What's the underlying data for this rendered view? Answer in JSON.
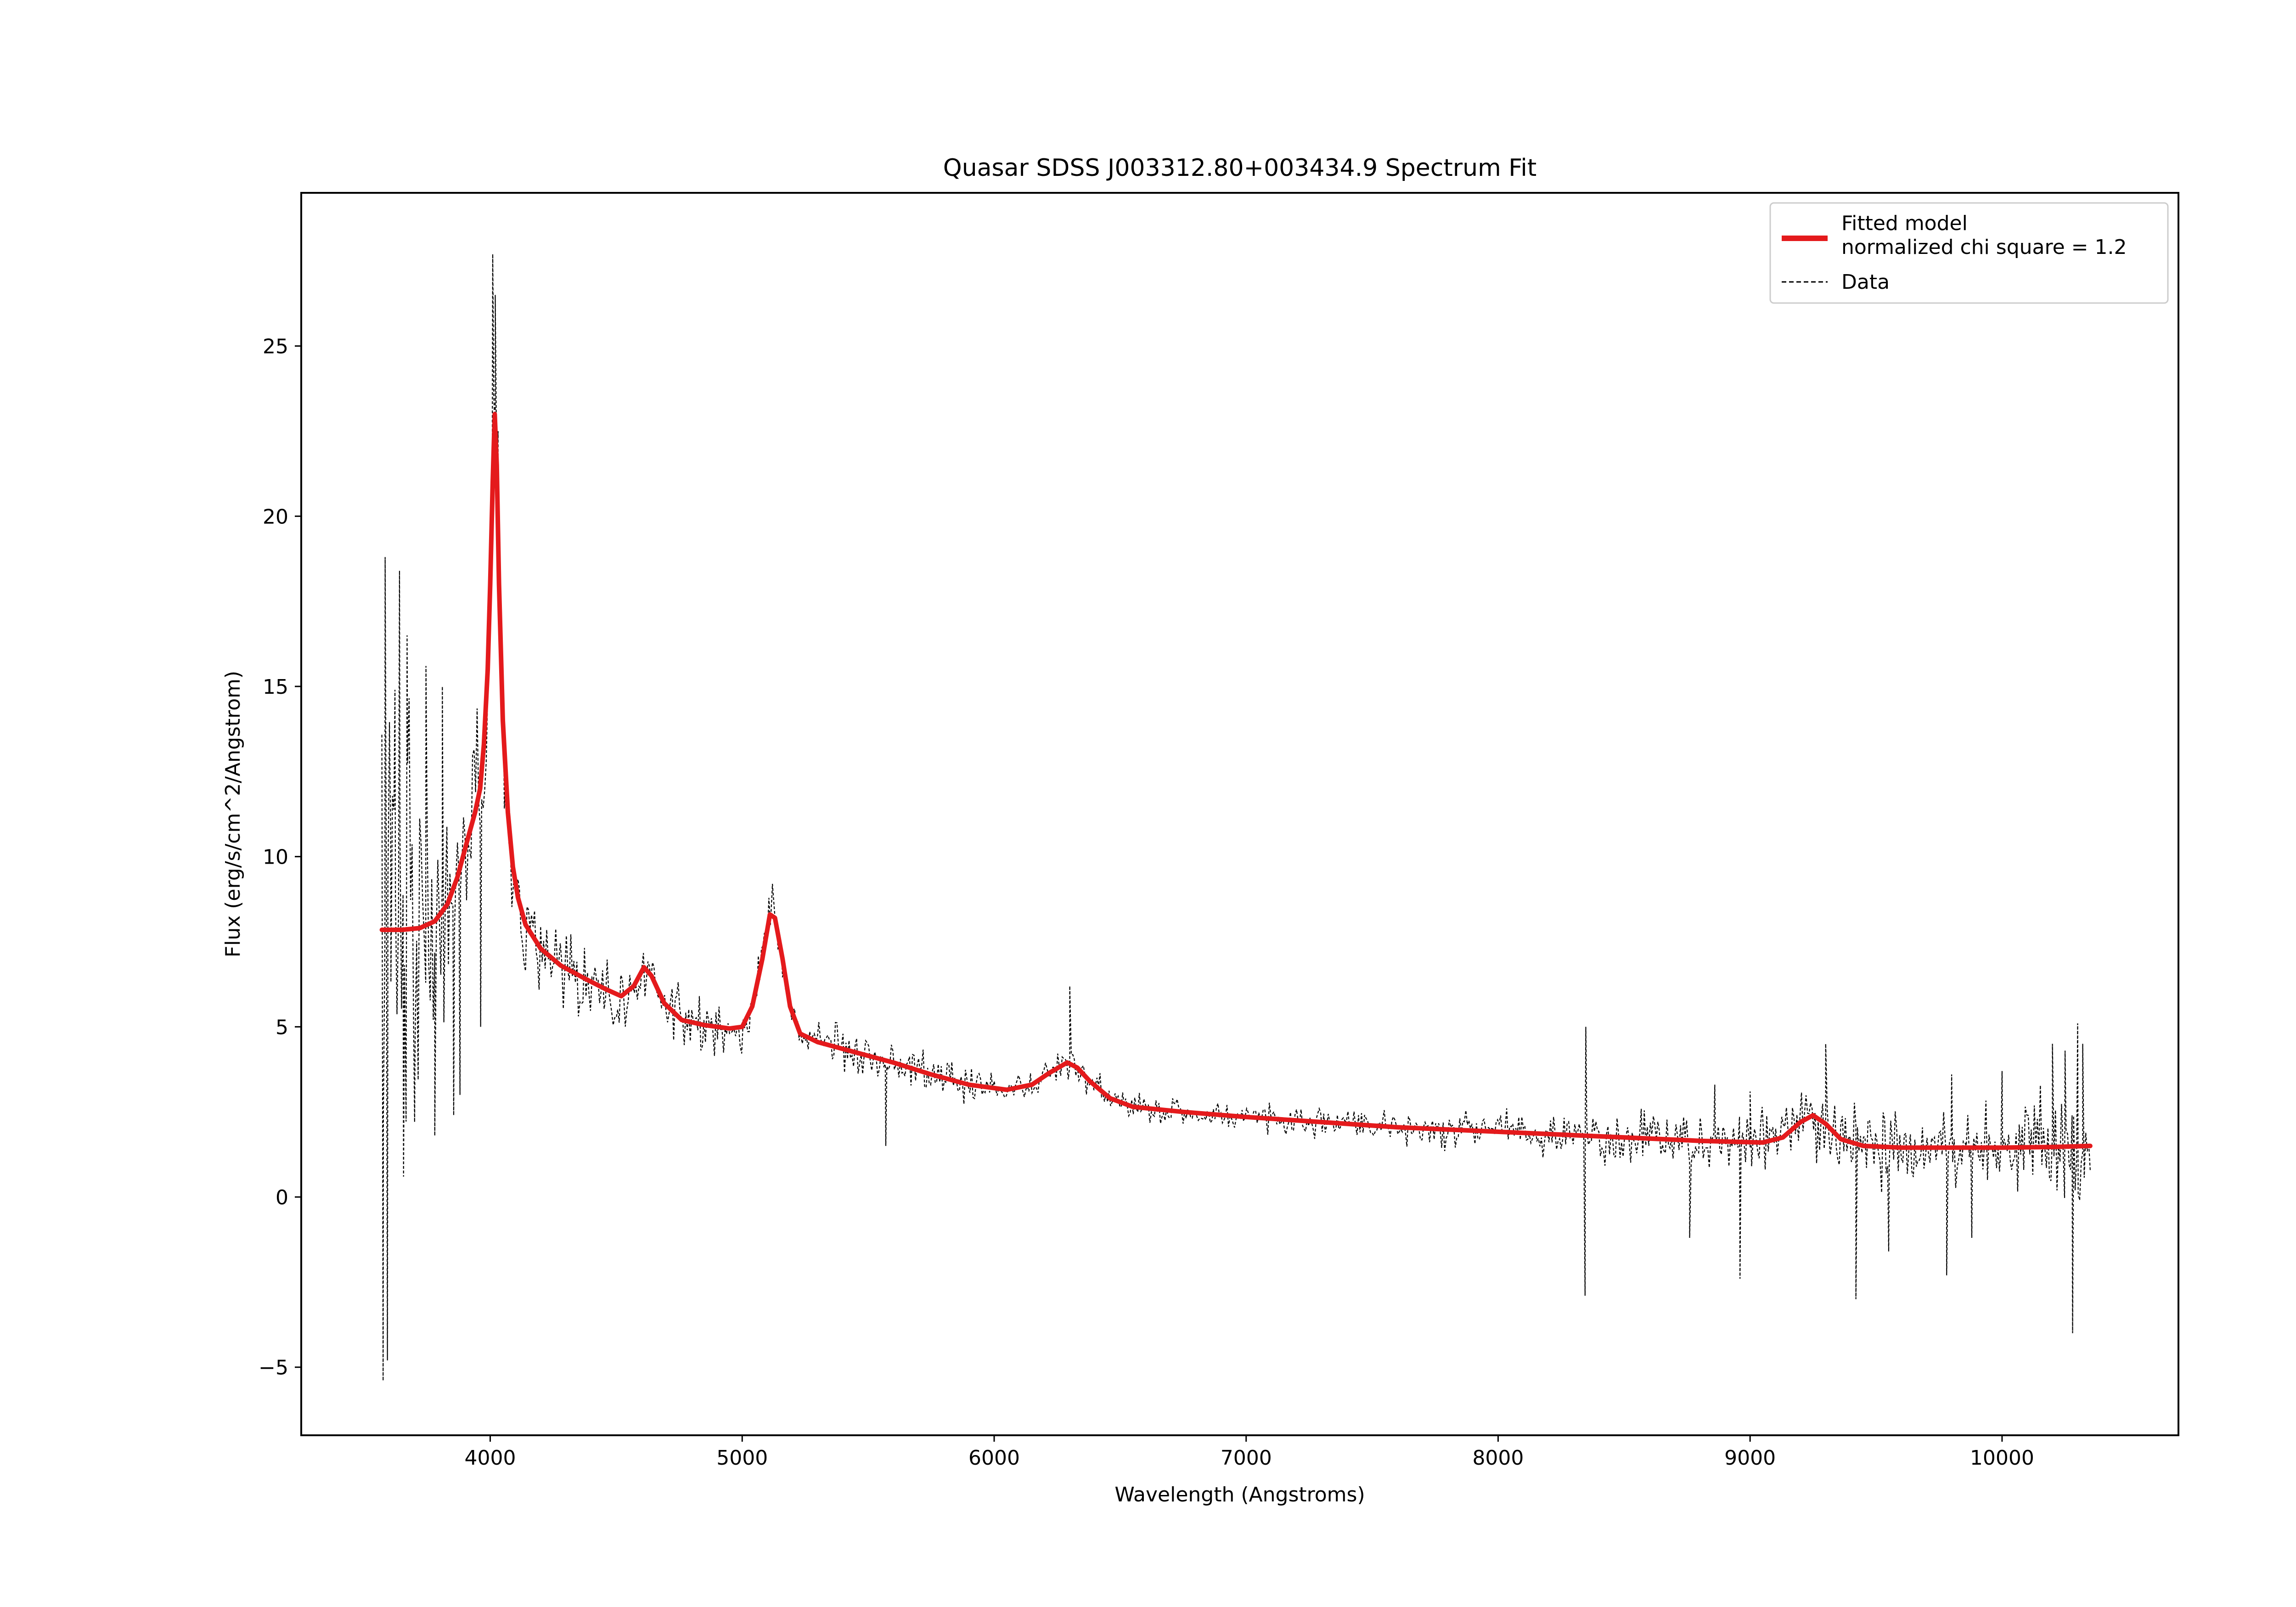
{
  "chart_data": {
    "type": "line",
    "title": "Quasar SDSS J003312.80+003434.9 Spectrum Fit",
    "xlabel": "Wavelength (Angstroms)",
    "ylabel": "Flux (erg/s/cm^2/Angstrom)",
    "xlim": [
      3250,
      10700
    ],
    "ylim": [
      -7,
      29.5
    ],
    "xticks": [
      4000,
      5000,
      6000,
      7000,
      8000,
      9000,
      10000
    ],
    "xtick_labels": [
      "4000",
      "5000",
      "6000",
      "7000",
      "8000",
      "9000",
      "10000"
    ],
    "yticks": [
      -5,
      0,
      5,
      10,
      15,
      20,
      25
    ],
    "ytick_labels": [
      "−5",
      "0",
      "5",
      "10",
      "15",
      "20",
      "25"
    ],
    "grid": false,
    "legend_position": "top-right",
    "series": [
      {
        "name": "Fitted model",
        "legend_extra": "normalized chi square = 1.2",
        "color": "#e41a1c",
        "style": "solid",
        "points": [
          [
            3570,
            7.85
          ],
          [
            3650,
            7.85
          ],
          [
            3720,
            7.9
          ],
          [
            3780,
            8.1
          ],
          [
            3830,
            8.6
          ],
          [
            3870,
            9.4
          ],
          [
            3910,
            10.5
          ],
          [
            3940,
            11.3
          ],
          [
            3960,
            12.0
          ],
          [
            3975,
            13.3
          ],
          [
            3990,
            15.5
          ],
          [
            4000,
            18.0
          ],
          [
            4010,
            21.0
          ],
          [
            4018,
            23.0
          ],
          [
            4026,
            21.5
          ],
          [
            4035,
            18.0
          ],
          [
            4050,
            14.0
          ],
          [
            4070,
            11.3
          ],
          [
            4090,
            9.7
          ],
          [
            4110,
            8.8
          ],
          [
            4140,
            8.0
          ],
          [
            4200,
            7.3
          ],
          [
            4280,
            6.8
          ],
          [
            4380,
            6.4
          ],
          [
            4460,
            6.1
          ],
          [
            4520,
            5.9
          ],
          [
            4570,
            6.2
          ],
          [
            4610,
            6.75
          ],
          [
            4640,
            6.5
          ],
          [
            4690,
            5.7
          ],
          [
            4760,
            5.2
          ],
          [
            4850,
            5.05
          ],
          [
            4950,
            4.95
          ],
          [
            5000,
            5.0
          ],
          [
            5040,
            5.6
          ],
          [
            5080,
            7.0
          ],
          [
            5110,
            8.3
          ],
          [
            5130,
            8.2
          ],
          [
            5160,
            7.0
          ],
          [
            5190,
            5.6
          ],
          [
            5230,
            4.8
          ],
          [
            5300,
            4.55
          ],
          [
            5450,
            4.25
          ],
          [
            5600,
            3.95
          ],
          [
            5750,
            3.6
          ],
          [
            5900,
            3.3
          ],
          [
            6050,
            3.15
          ],
          [
            6150,
            3.3
          ],
          [
            6220,
            3.65
          ],
          [
            6290,
            3.95
          ],
          [
            6330,
            3.8
          ],
          [
            6380,
            3.4
          ],
          [
            6460,
            2.9
          ],
          [
            6550,
            2.65
          ],
          [
            6750,
            2.5
          ],
          [
            7000,
            2.35
          ],
          [
            7300,
            2.2
          ],
          [
            7600,
            2.05
          ],
          [
            7900,
            1.95
          ],
          [
            8200,
            1.85
          ],
          [
            8500,
            1.75
          ],
          [
            8800,
            1.65
          ],
          [
            9050,
            1.6
          ],
          [
            9130,
            1.75
          ],
          [
            9200,
            2.2
          ],
          [
            9250,
            2.4
          ],
          [
            9300,
            2.15
          ],
          [
            9360,
            1.7
          ],
          [
            9450,
            1.5
          ],
          [
            9600,
            1.45
          ],
          [
            9800,
            1.45
          ],
          [
            10000,
            1.45
          ],
          [
            10200,
            1.47
          ],
          [
            10350,
            1.5
          ]
        ]
      },
      {
        "name": "Data",
        "color": "#000000",
        "style": "dashed",
        "generator": {
          "x_start": 3570,
          "x_end": 10350,
          "step": 6,
          "seed": 20240617,
          "noise_profile": [
            [
              3570,
              7.0
            ],
            [
              3660,
              6.0
            ],
            [
              3800,
              3.5
            ],
            [
              3900,
              2.0
            ],
            [
              3990,
              2.0
            ],
            [
              4050,
              1.8
            ],
            [
              4200,
              1.0
            ],
            [
              4600,
              0.75
            ],
            [
              5000,
              0.6
            ],
            [
              5500,
              0.5
            ],
            [
              6500,
              0.35
            ],
            [
              7500,
              0.35
            ],
            [
              8300,
              0.55
            ],
            [
              8800,
              0.75
            ],
            [
              9400,
              0.9
            ],
            [
              10000,
              1.0
            ],
            [
              10350,
              1.5
            ]
          ]
        },
        "spikes": [
          [
            3575,
            -5.4
          ],
          [
            3583,
            18.8
          ],
          [
            3592,
            -4.8
          ],
          [
            3605,
            10.5
          ],
          [
            3622,
            14.9
          ],
          [
            3640,
            18.4
          ],
          [
            3656,
            0.6
          ],
          [
            3670,
            16.5
          ],
          [
            3700,
            2.2
          ],
          [
            3745,
            15.6
          ],
          [
            3780,
            1.8
          ],
          [
            3810,
            15.0
          ],
          [
            3855,
            2.4
          ],
          [
            3880,
            3.0
          ],
          [
            3962,
            5.0
          ],
          [
            4010,
            27.7
          ],
          [
            4020,
            26.5
          ],
          [
            4031,
            22.5
          ],
          [
            5120,
            9.2
          ],
          [
            5570,
            1.5
          ],
          [
            6300,
            6.2
          ],
          [
            8345,
            -2.9
          ],
          [
            8348,
            5.0
          ],
          [
            8760,
            -1.2
          ],
          [
            8860,
            3.3
          ],
          [
            8960,
            -2.4
          ],
          [
            9000,
            3.1
          ],
          [
            9300,
            4.5
          ],
          [
            9420,
            -3.0
          ],
          [
            9550,
            -1.6
          ],
          [
            9780,
            -2.3
          ],
          [
            9800,
            3.6
          ],
          [
            9880,
            -1.2
          ],
          [
            10000,
            3.7
          ],
          [
            10200,
            4.5
          ],
          [
            10250,
            4.3
          ],
          [
            10280,
            -4.0
          ],
          [
            10300,
            5.1
          ],
          [
            10320,
            4.5
          ]
        ]
      }
    ]
  }
}
